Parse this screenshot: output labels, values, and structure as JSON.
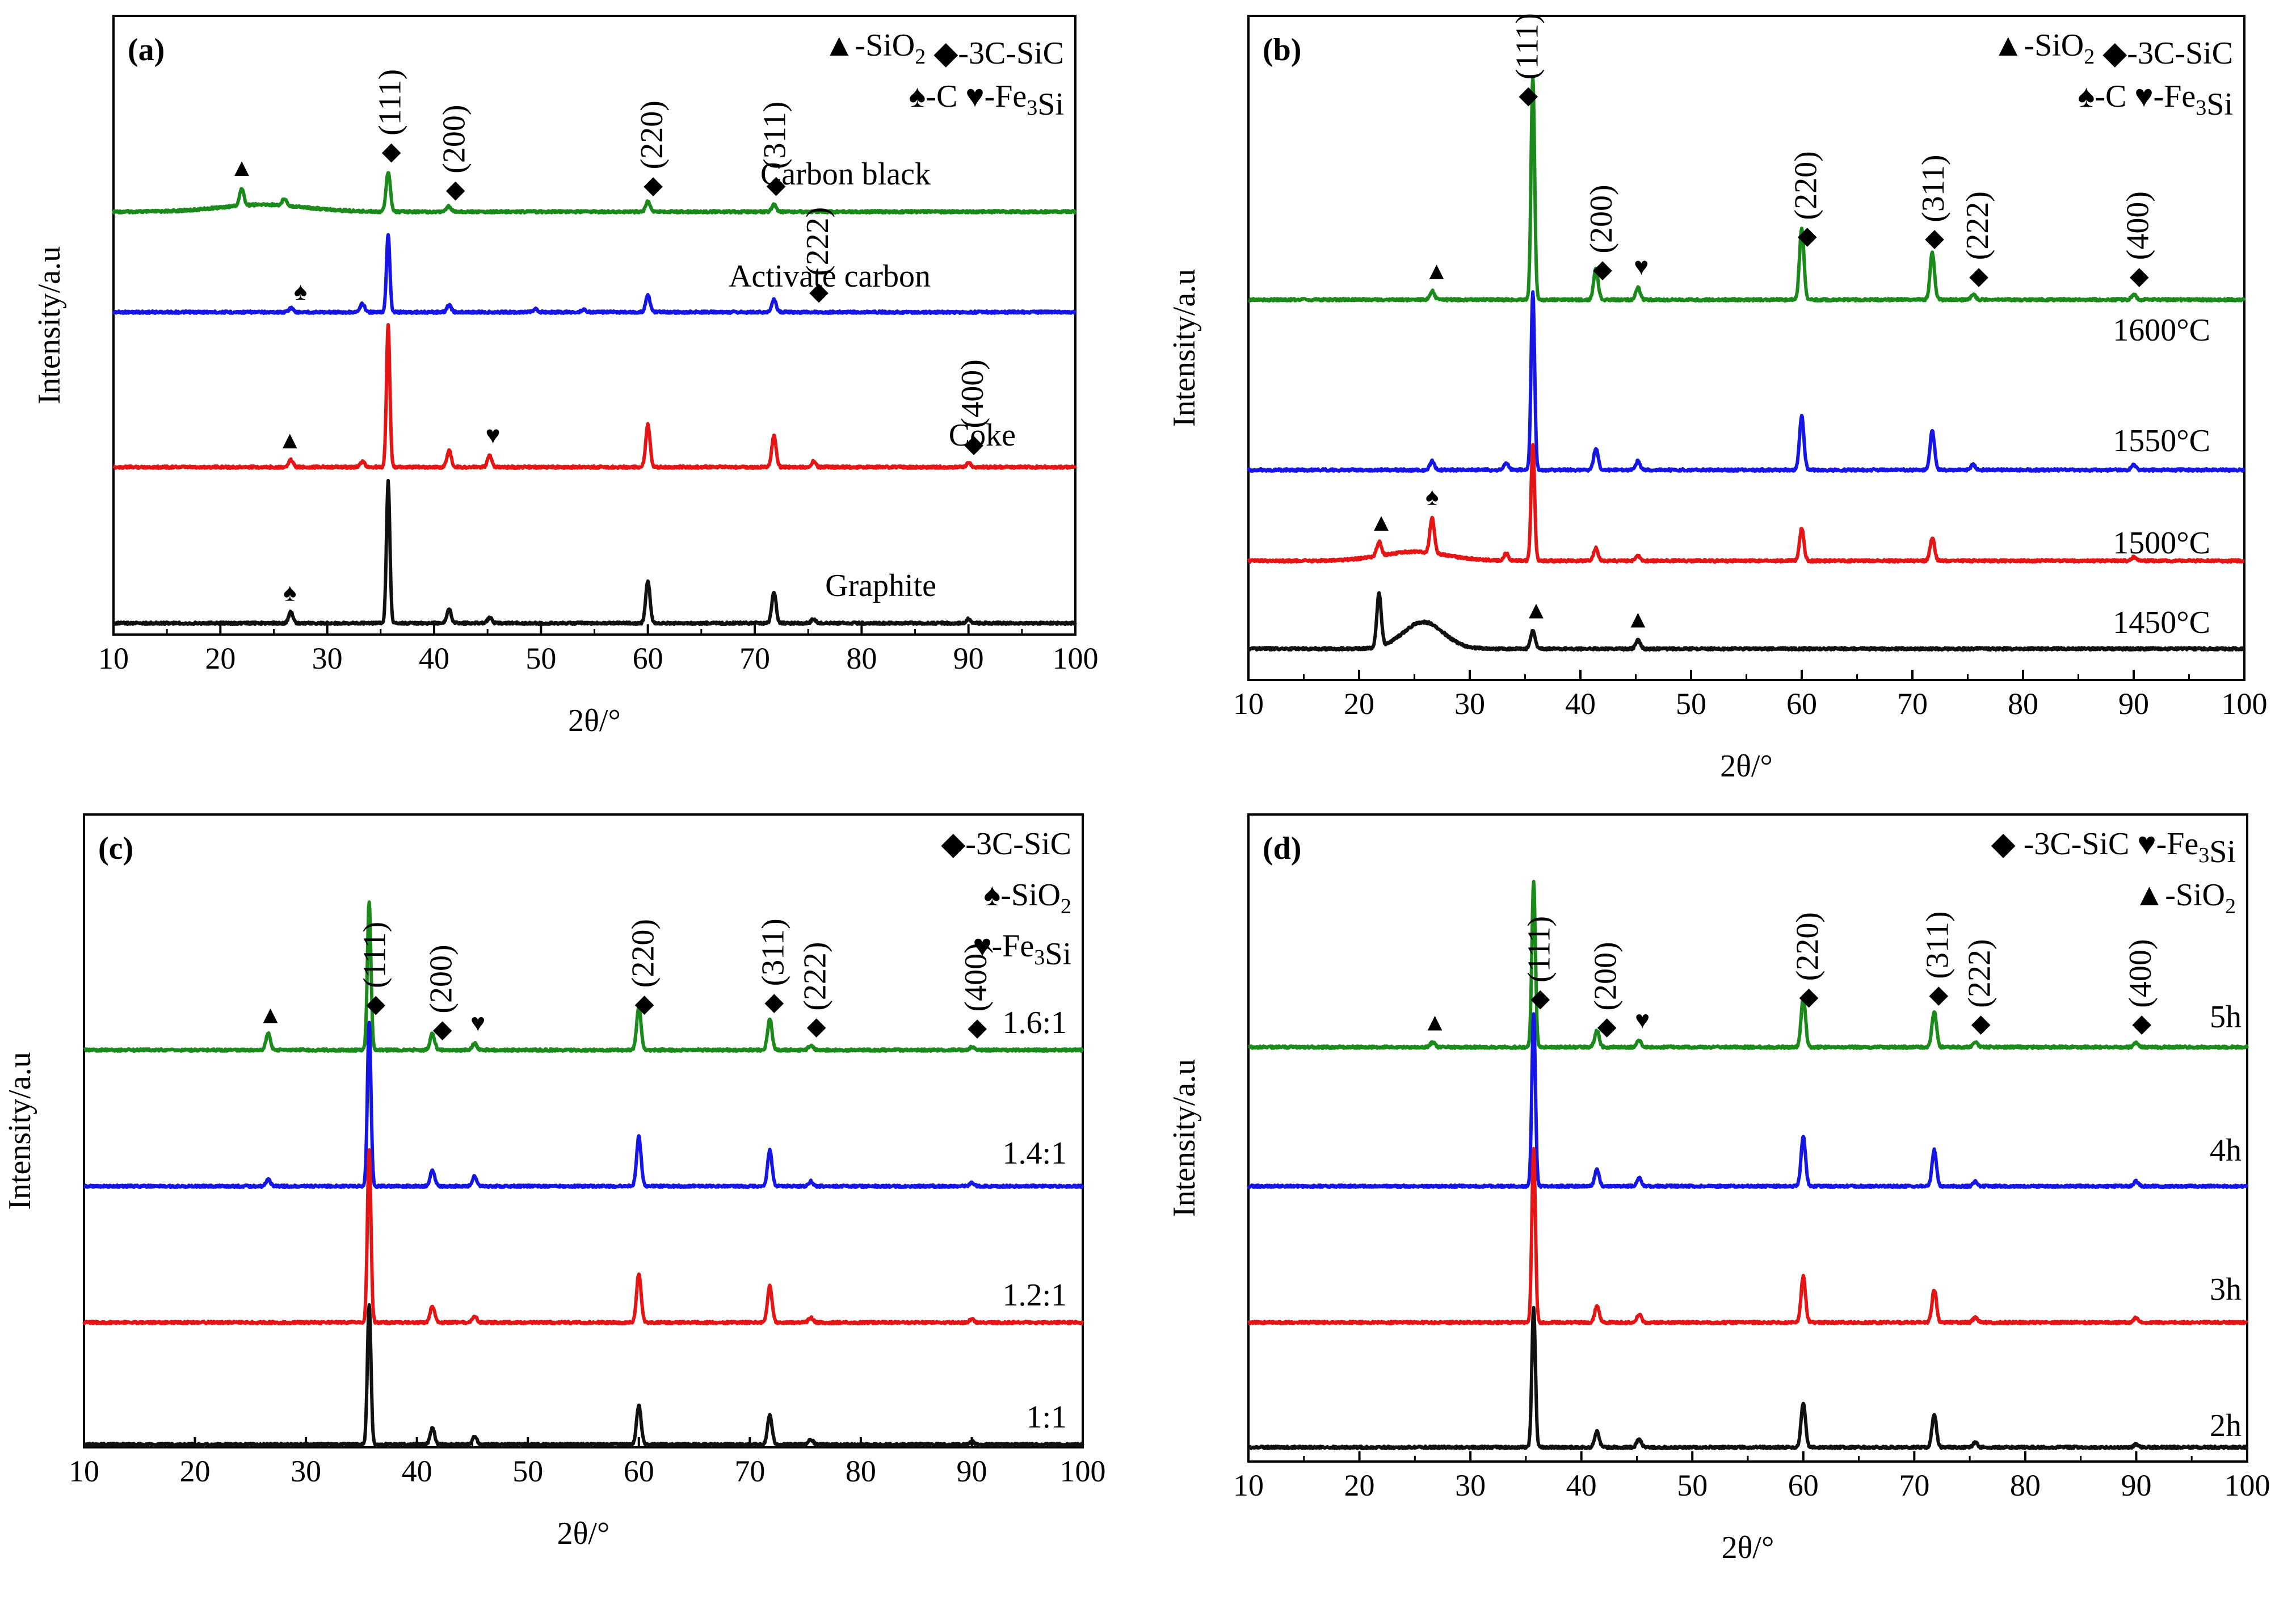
{
  "chart_data": [
    {
      "type": "line",
      "panel_label": "(a)",
      "xlabel": "2θ/°",
      "ylabel": "Intensity/a.u",
      "xlim": [
        10,
        100
      ],
      "x_ticks": [
        "10",
        "20",
        "30",
        "40",
        "50",
        "60",
        "70",
        "80",
        "90",
        "100"
      ],
      "legend": [
        {
          "symbol": "▲",
          "text": "-SiO",
          "sub": "2"
        },
        {
          "symbol": "◆",
          "text": "-3C-SiC",
          "sub": ""
        },
        {
          "symbol": "♠",
          "text": "-C",
          "sub": ""
        },
        {
          "symbol": "♥",
          "text": "-Fe",
          "sub": "3",
          "tail": "Si"
        }
      ],
      "series": [
        {
          "name": "Carbon black",
          "color": "#1a8a1a",
          "offset": 3,
          "baseline_peaks": [
            [
              22,
              0.12
            ],
            [
              26,
              0.05
            ],
            [
              35.7,
              0.28
            ],
            [
              41.4,
              0.04
            ],
            [
              60,
              0.07
            ],
            [
              71.8,
              0.05
            ]
          ],
          "hump": [
            24,
            4,
            0.05
          ]
        },
        {
          "name": "Activate carbon",
          "color": "#1515e6",
          "offset": 2,
          "baseline_peaks": [
            [
              26.6,
              0.03
            ],
            [
              33.3,
              0.06
            ],
            [
              35.7,
              0.55
            ],
            [
              41.4,
              0.05
            ],
            [
              49.5,
              0.02
            ],
            [
              54,
              0.02
            ],
            [
              60,
              0.12
            ],
            [
              71.8,
              0.09
            ]
          ],
          "hump": null
        },
        {
          "name": "Coke",
          "color": "#e61515",
          "offset": 1,
          "baseline_peaks": [
            [
              26.6,
              0.05
            ],
            [
              33.3,
              0.04
            ],
            [
              35.7,
              1.0
            ],
            [
              41.4,
              0.12
            ],
            [
              45.2,
              0.08
            ],
            [
              60,
              0.3
            ],
            [
              71.8,
              0.22
            ],
            [
              75.5,
              0.04
            ],
            [
              90,
              0.03
            ]
          ],
          "hump": null
        },
        {
          "name": "Graphite",
          "color": "#111111",
          "offset": 0,
          "baseline_peaks": [
            [
              26.6,
              0.08
            ],
            [
              35.7,
              1.0
            ],
            [
              41.4,
              0.1
            ],
            [
              45.2,
              0.04
            ],
            [
              60,
              0.3
            ],
            [
              71.8,
              0.22
            ],
            [
              75.5,
              0.03
            ],
            [
              90,
              0.03
            ]
          ],
          "hump": null
        }
      ],
      "annotations": [
        {
          "x": 36,
          "text": "(111)",
          "marker": "◆",
          "rot": true,
          "series": "Carbon black"
        },
        {
          "x": 42,
          "text": "(200)",
          "marker": "◆",
          "rot": true,
          "series": "Carbon black"
        },
        {
          "x": 60.5,
          "text": "(220)",
          "marker": "◆",
          "rot": true,
          "series": "Carbon black"
        },
        {
          "x": 72,
          "text": "(311)",
          "marker": "◆",
          "rot": true,
          "series": "Carbon black"
        },
        {
          "x": 76,
          "text": "(222)",
          "marker": "◆",
          "rot": true,
          "series": "Activate carbon"
        },
        {
          "x": 90.5,
          "text": "(400)",
          "marker": "◆",
          "rot": true,
          "series": "Coke"
        },
        {
          "x": 22,
          "text": "",
          "marker": "▲",
          "rot": false,
          "series": "Carbon black"
        },
        {
          "x": 27.5,
          "text": "",
          "marker": "♠",
          "rot": false,
          "series": "Activate carbon"
        },
        {
          "x": 26.5,
          "text": "",
          "marker": "▲",
          "rot": false,
          "series": "Coke"
        },
        {
          "x": 45.5,
          "text": "",
          "marker": "♥",
          "rot": false,
          "series": "Coke"
        },
        {
          "x": 26.5,
          "text": "",
          "marker": "♠",
          "rot": false,
          "series": "Graphite"
        }
      ]
    },
    {
      "type": "line",
      "panel_label": "(b)",
      "xlabel": "2θ/°",
      "ylabel": "Intensity/a.u",
      "xlim": [
        10,
        100
      ],
      "x_ticks": [
        "10",
        "20",
        "30",
        "40",
        "50",
        "60",
        "70",
        "80",
        "90",
        "100"
      ],
      "legend": [
        {
          "symbol": "▲",
          "text": "-SiO",
          "sub": "2"
        },
        {
          "symbol": "◆",
          "text": "-3C-SiC",
          "sub": ""
        },
        {
          "symbol": "♠",
          "text": "-C",
          "sub": ""
        },
        {
          "symbol": "♥",
          "text": "-Fe",
          "sub": "3",
          "tail": "Si"
        }
      ],
      "series": [
        {
          "name": "1600°C",
          "color": "#1a8a1a",
          "offset": 3,
          "baseline_peaks": [
            [
              26.6,
              0.05
            ],
            [
              35.7,
              1.25
            ],
            [
              41.4,
              0.17
            ],
            [
              45.2,
              0.07
            ],
            [
              60,
              0.4
            ],
            [
              71.8,
              0.26
            ],
            [
              75.5,
              0.03
            ],
            [
              90,
              0.03
            ]
          ],
          "hump": null
        },
        {
          "name": "1550°C",
          "color": "#1515e6",
          "offset": 2,
          "baseline_peaks": [
            [
              26.6,
              0.05
            ],
            [
              33.3,
              0.04
            ],
            [
              35.7,
              1.0
            ],
            [
              41.4,
              0.12
            ],
            [
              45.2,
              0.05
            ],
            [
              60,
              0.3
            ],
            [
              71.8,
              0.22
            ],
            [
              75.5,
              0.03
            ],
            [
              90,
              0.03
            ]
          ],
          "hump": null
        },
        {
          "name": "1500°C",
          "color": "#e61515",
          "offset": 1,
          "baseline_peaks": [
            [
              21.8,
              0.08
            ],
            [
              26.6,
              0.2
            ],
            [
              33.3,
              0.04
            ],
            [
              35.7,
              0.65
            ],
            [
              41.4,
              0.07
            ],
            [
              45.2,
              0.03
            ],
            [
              60,
              0.18
            ],
            [
              71.8,
              0.13
            ],
            [
              90,
              0.02
            ]
          ],
          "hump": [
            25,
            3,
            0.05
          ]
        },
        {
          "name": "1450°C",
          "color": "#111111",
          "offset": 0,
          "baseline_peaks": [
            [
              21.8,
              0.3
            ],
            [
              35.7,
              0.1
            ],
            [
              45.2,
              0.05
            ]
          ],
          "hump": [
            25.8,
            1.8,
            0.15
          ]
        }
      ],
      "annotations": [
        {
          "x": 35.3,
          "text": "(111)",
          "marker": "◆",
          "rot": true,
          "series": "1600°C"
        },
        {
          "x": 42,
          "text": "(200)",
          "marker": "◆",
          "rot": true,
          "series": "1600°C"
        },
        {
          "x": 45.5,
          "text": "",
          "marker": "♥",
          "rot": false,
          "series": "1600°C"
        },
        {
          "x": 60.5,
          "text": "(220)",
          "marker": "◆",
          "rot": true,
          "series": "1600°C"
        },
        {
          "x": 72,
          "text": "(311)",
          "marker": "◆",
          "rot": true,
          "series": "1600°C"
        },
        {
          "x": 76,
          "text": "(222)",
          "marker": "◆",
          "rot": true,
          "series": "1600°C"
        },
        {
          "x": 90.5,
          "text": "(400)",
          "marker": "◆",
          "rot": true,
          "series": "1600°C"
        },
        {
          "x": 27,
          "text": "",
          "marker": "▲",
          "rot": false,
          "series": "1600°C"
        },
        {
          "x": 22,
          "text": "",
          "marker": "▲",
          "rot": false,
          "series": "1500°C"
        },
        {
          "x": 26.6,
          "text": "",
          "marker": "♠",
          "rot": false,
          "series": "1500°C"
        },
        {
          "x": 36,
          "text": "",
          "marker": "▲",
          "rot": false,
          "series": "1450°C"
        },
        {
          "x": 45.2,
          "text": "",
          "marker": "▲",
          "rot": false,
          "series": "1450°C"
        }
      ]
    },
    {
      "type": "line",
      "panel_label": "(c)",
      "xlabel": "2θ/°",
      "ylabel": "Intensity/a.u",
      "xlim": [
        10,
        100
      ],
      "x_ticks": [
        "10",
        "20",
        "30",
        "40",
        "50",
        "60",
        "70",
        "80",
        "90",
        "100"
      ],
      "legend": [
        {
          "symbol": "◆",
          "text": "-3C-SiC",
          "sub": ""
        },
        {
          "symbol": "♠",
          "text": "-SiO",
          "sub": "2"
        },
        {
          "symbol": "♥",
          "text": "-Fe",
          "sub": "3",
          "tail": "Si"
        }
      ],
      "series": [
        {
          "name": "1.6:1",
          "color": "#1a8a1a",
          "offset": 3,
          "baseline_peaks": [
            [
              26.6,
              0.1
            ],
            [
              35.7,
              0.9
            ],
            [
              41.4,
              0.1
            ],
            [
              45.2,
              0.04
            ],
            [
              60,
              0.26
            ],
            [
              71.8,
              0.19
            ],
            [
              75.5,
              0.03
            ],
            [
              90,
              0.02
            ]
          ],
          "hump": null
        },
        {
          "name": "1.4:1",
          "color": "#1515e6",
          "offset": 2,
          "baseline_peaks": [
            [
              26.6,
              0.04
            ],
            [
              35.7,
              1.0
            ],
            [
              41.4,
              0.1
            ],
            [
              45.2,
              0.06
            ],
            [
              60,
              0.3
            ],
            [
              71.8,
              0.22
            ],
            [
              75.5,
              0.03
            ],
            [
              90,
              0.02
            ]
          ],
          "hump": null
        },
        {
          "name": "1.2:1",
          "color": "#e61515",
          "offset": 1,
          "baseline_peaks": [
            [
              35.7,
              1.05
            ],
            [
              41.4,
              0.1
            ],
            [
              45.2,
              0.04
            ],
            [
              60,
              0.3
            ],
            [
              71.8,
              0.22
            ],
            [
              75.5,
              0.03
            ],
            [
              90,
              0.02
            ]
          ],
          "hump": null
        },
        {
          "name": "1:1",
          "color": "#111111",
          "offset": 0,
          "baseline_peaks": [
            [
              35.7,
              0.85
            ],
            [
              41.4,
              0.1
            ],
            [
              45.2,
              0.05
            ],
            [
              60,
              0.24
            ],
            [
              71.8,
              0.18
            ],
            [
              75.5,
              0.03
            ],
            [
              90,
              0.02
            ]
          ],
          "hump": null
        }
      ],
      "annotations": [
        {
          "x": 36.3,
          "text": "(111)",
          "marker": "◆",
          "rot": true,
          "series": "1.6:1"
        },
        {
          "x": 42.3,
          "text": "(200)",
          "marker": "◆",
          "rot": true,
          "series": "1.6:1"
        },
        {
          "x": 45.5,
          "text": "",
          "marker": "♥",
          "rot": false,
          "series": "1.6:1"
        },
        {
          "x": 60.5,
          "text": "(220)",
          "marker": "◆",
          "rot": true,
          "series": "1.6:1"
        },
        {
          "x": 72.2,
          "text": "(311)",
          "marker": "◆",
          "rot": true,
          "series": "1.6:1"
        },
        {
          "x": 76,
          "text": "(222)",
          "marker": "◆",
          "rot": true,
          "series": "1.6:1"
        },
        {
          "x": 90.5,
          "text": "(400)",
          "marker": "◆",
          "rot": true,
          "series": "1.6:1"
        },
        {
          "x": 26.8,
          "text": "",
          "marker": "▲",
          "rot": false,
          "series": "1.6:1"
        }
      ]
    },
    {
      "type": "line",
      "panel_label": "(d)",
      "xlabel": "2θ/°",
      "ylabel": "Intensity/a.u",
      "xlim": [
        10,
        100
      ],
      "x_ticks": [
        "10",
        "20",
        "30",
        "40",
        "50",
        "60",
        "70",
        "80",
        "90",
        "100"
      ],
      "legend": [
        {
          "symbol": "◆",
          "text": " -3C-SiC",
          "sub": ""
        },
        {
          "symbol": "♥",
          "text": "-Fe",
          "sub": "3",
          "tail": "Si"
        },
        {
          "symbol": "▲",
          "text": "-SiO",
          "sub": "2"
        }
      ],
      "series": [
        {
          "name": "5h",
          "color": "#1a8a1a",
          "offset": 3,
          "baseline_peaks": [
            [
              26.6,
              0.03
            ],
            [
              35.7,
              1.0
            ],
            [
              41.4,
              0.1
            ],
            [
              45.2,
              0.04
            ],
            [
              60,
              0.3
            ],
            [
              71.8,
              0.22
            ],
            [
              75.5,
              0.03
            ],
            [
              90,
              0.03
            ]
          ],
          "hump": null
        },
        {
          "name": "4h",
          "color": "#1515e6",
          "offset": 2,
          "baseline_peaks": [
            [
              35.7,
              1.05
            ],
            [
              41.4,
              0.1
            ],
            [
              45.2,
              0.05
            ],
            [
              60,
              0.3
            ],
            [
              71.8,
              0.22
            ],
            [
              75.5,
              0.03
            ],
            [
              90,
              0.03
            ]
          ],
          "hump": null
        },
        {
          "name": "3h",
          "color": "#e61515",
          "offset": 1,
          "baseline_peaks": [
            [
              35.7,
              1.05
            ],
            [
              41.4,
              0.1
            ],
            [
              45.2,
              0.05
            ],
            [
              60,
              0.28
            ],
            [
              71.8,
              0.2
            ],
            [
              75.5,
              0.03
            ],
            [
              90,
              0.03
            ]
          ],
          "hump": null
        },
        {
          "name": "2h",
          "color": "#111111",
          "offset": 0,
          "baseline_peaks": [
            [
              35.7,
              0.85
            ],
            [
              41.4,
              0.1
            ],
            [
              45.2,
              0.05
            ],
            [
              60,
              0.27
            ],
            [
              71.8,
              0.2
            ],
            [
              75.5,
              0.03
            ],
            [
              90,
              0.02
            ]
          ],
          "hump": null
        }
      ],
      "annotations": [
        {
          "x": 36.3,
          "text": "(111)",
          "marker": "◆",
          "rot": true,
          "series": "5h"
        },
        {
          "x": 42.3,
          "text": "(200)",
          "marker": "◆",
          "rot": true,
          "series": "5h"
        },
        {
          "x": 45.5,
          "text": "",
          "marker": "♥",
          "rot": false,
          "series": "5h"
        },
        {
          "x": 60.5,
          "text": "(220)",
          "marker": "◆",
          "rot": true,
          "series": "5h"
        },
        {
          "x": 72.2,
          "text": "(311)",
          "marker": "◆",
          "rot": true,
          "series": "5h"
        },
        {
          "x": 76,
          "text": "(222)",
          "marker": "◆",
          "rot": true,
          "series": "5h"
        },
        {
          "x": 90.5,
          "text": "(400)",
          "marker": "◆",
          "rot": true,
          "series": "5h"
        },
        {
          "x": 26.8,
          "text": "",
          "marker": "▲",
          "rot": false,
          "series": "5h"
        }
      ]
    }
  ]
}
